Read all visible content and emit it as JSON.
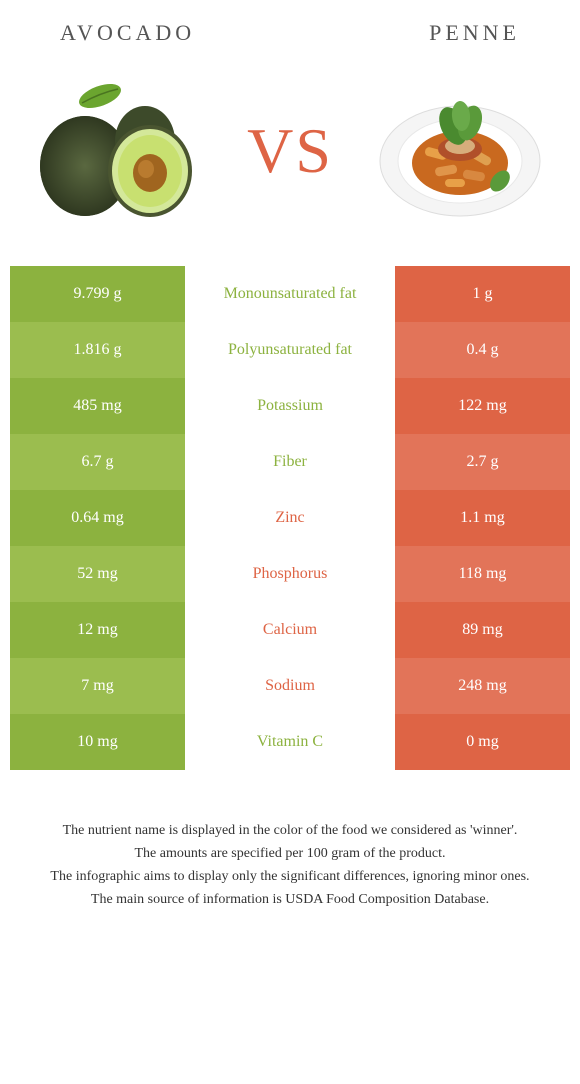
{
  "header": {
    "left_title": "AVOCADO",
    "right_title": "PENNE"
  },
  "vs": {
    "label": "VS",
    "color": "#de6445"
  },
  "colors": {
    "left_dark": "#8cb23f",
    "left_light": "#9bbd4f",
    "right_dark": "#de6445",
    "right_light": "#e27459",
    "middle_bg": "#ffffff"
  },
  "table": {
    "rows": [
      {
        "left": "9.799 g",
        "label": "Monounsaturated fat",
        "right": "1 g",
        "winner": "left"
      },
      {
        "left": "1.816 g",
        "label": "Polyunsaturated fat",
        "right": "0.4 g",
        "winner": "left"
      },
      {
        "left": "485 mg",
        "label": "Potassium",
        "right": "122 mg",
        "winner": "left"
      },
      {
        "left": "6.7 g",
        "label": "Fiber",
        "right": "2.7 g",
        "winner": "left"
      },
      {
        "left": "0.64 mg",
        "label": "Zinc",
        "right": "1.1 mg",
        "winner": "right"
      },
      {
        "left": "52 mg",
        "label": "Phosphorus",
        "right": "118 mg",
        "winner": "right"
      },
      {
        "left": "12 mg",
        "label": "Calcium",
        "right": "89 mg",
        "winner": "right"
      },
      {
        "left": "7 mg",
        "label": "Sodium",
        "right": "248 mg",
        "winner": "right"
      },
      {
        "left": "10 mg",
        "label": "Vitamin C",
        "right": "0 mg",
        "winner": "left"
      }
    ]
  },
  "footnotes": [
    "The nutrient name is displayed in the color of the food we considered as 'winner'.",
    "The amounts are specified per 100 gram of the product.",
    "The infographic aims to display only the significant differences, ignoring minor ones.",
    "The main source of information is USDA Food Composition Database."
  ]
}
